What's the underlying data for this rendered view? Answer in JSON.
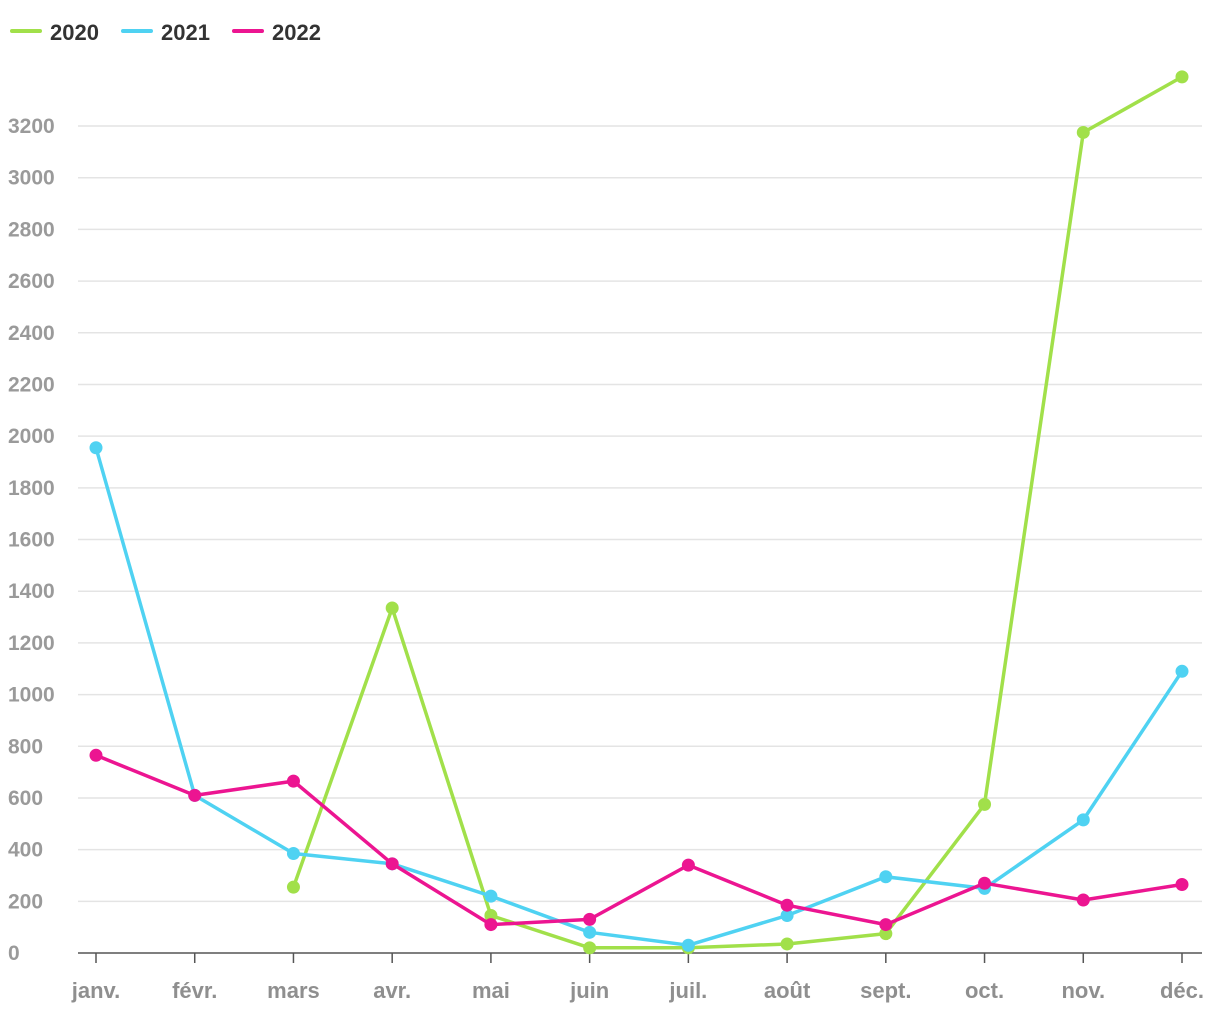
{
  "chart_data": {
    "type": "line",
    "title": "",
    "xlabel": "",
    "ylabel": "",
    "categories": [
      "janv.",
      "févr.",
      "mars",
      "avr.",
      "mai",
      "juin",
      "juil.",
      "août",
      "sept.",
      "oct.",
      "nov.",
      "déc."
    ],
    "yticks": [
      0,
      200,
      400,
      600,
      800,
      1000,
      1200,
      1400,
      1600,
      1800,
      2000,
      2200,
      2400,
      2600,
      2800,
      3000,
      3200
    ],
    "ylim": [
      0,
      3400
    ],
    "grid": true,
    "legend_position": "top-left",
    "series": [
      {
        "name": "2020",
        "color": "#a1e04a",
        "values": [
          null,
          null,
          255,
          1335,
          145,
          20,
          20,
          35,
          75,
          575,
          3175,
          3390
        ]
      },
      {
        "name": "2021",
        "color": "#4fd2f2",
        "values": [
          1955,
          610,
          385,
          345,
          220,
          80,
          30,
          145,
          295,
          250,
          515,
          1090
        ]
      },
      {
        "name": "2022",
        "color": "#ec1591",
        "values": [
          765,
          610,
          665,
          345,
          110,
          130,
          340,
          185,
          110,
          270,
          205,
          265
        ]
      }
    ]
  }
}
